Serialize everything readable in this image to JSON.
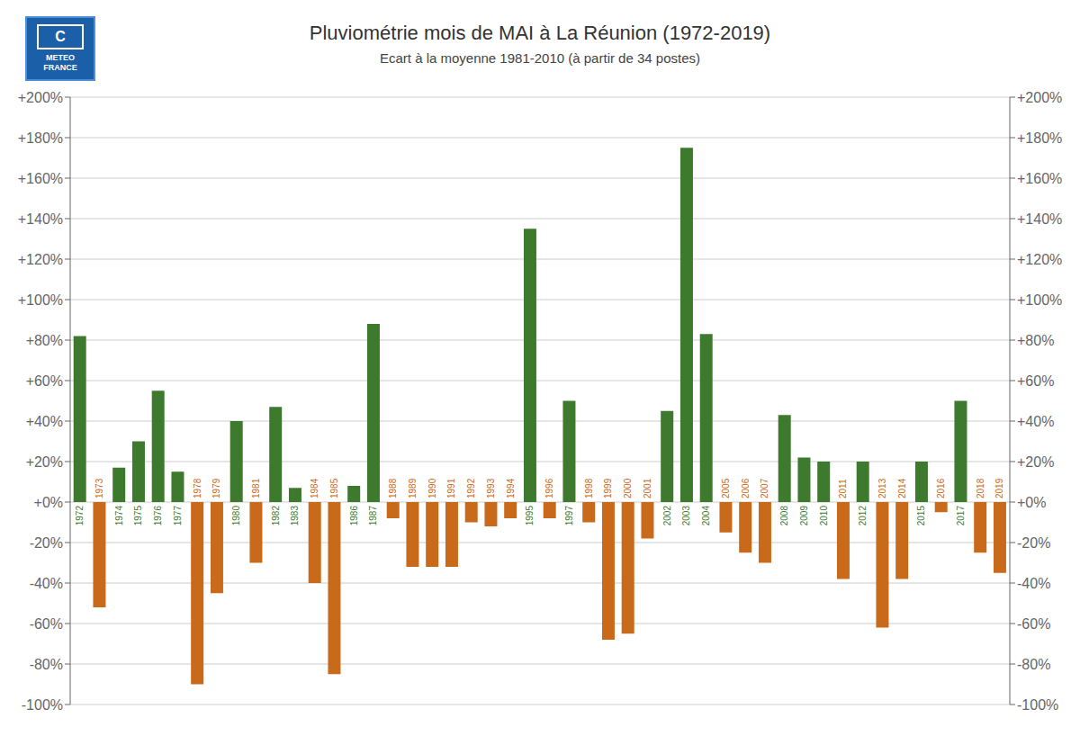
{
  "chart_data": {
    "type": "bar",
    "title": "Pluviométrie mois de MAI à La Réunion (1972-2019)",
    "subtitle": "Ecart à la moyenne 1981-2010 (à partir de 34 postes)",
    "annotations": [
      "C",
      "METEO",
      "FRANCE"
    ],
    "categories": [
      1972,
      1973,
      1974,
      1975,
      1976,
      1977,
      1978,
      1979,
      1980,
      1981,
      1982,
      1983,
      1984,
      1985,
      1986,
      1987,
      1988,
      1989,
      1990,
      1991,
      1992,
      1993,
      1994,
      1995,
      1996,
      1997,
      1998,
      1999,
      2000,
      2001,
      2002,
      2003,
      2004,
      2005,
      2006,
      2007,
      2008,
      2009,
      2010,
      2011,
      2012,
      2013,
      2014,
      2015,
      2016,
      2017,
      2018,
      2019
    ],
    "values": [
      82,
      -52,
      17,
      30,
      55,
      15,
      -90,
      -45,
      40,
      -30,
      47,
      7,
      -40,
      -85,
      8,
      88,
      -8,
      -32,
      -32,
      -32,
      -10,
      -12,
      -8,
      135,
      -8,
      50,
      -10,
      -68,
      -65,
      -18,
      45,
      175,
      83,
      -15,
      -25,
      -30,
      43,
      22,
      20,
      -38,
      20,
      -62,
      -38,
      20,
      -5,
      50,
      -25,
      -35
    ],
    "colors": [
      "#3d7a2e",
      "#c96a1a",
      "#3d7a2e",
      "#3d7a2e",
      "#3d7a2e",
      "#3d7a2e",
      "#c96a1a",
      "#c96a1a",
      "#3d7a2e",
      "#c96a1a",
      "#3d7a2e",
      "#3d7a2e",
      "#c96a1a",
      "#c96a1a",
      "#3d7a2e",
      "#3d7a2e",
      "#c96a1a",
      "#c96a1a",
      "#c96a1a",
      "#c96a1a",
      "#c96a1a",
      "#c96a1a",
      "#c96a1a",
      "#3d7a2e",
      "#c96a1a",
      "#3d7a2e",
      "#c96a1a",
      "#c96a1a",
      "#c96a1a",
      "#c96a1a",
      "#3d7a2e",
      "#3d7a2e",
      "#3d7a2e",
      "#c96a1a",
      "#c96a1a",
      "#c96a1a",
      "#3d7a2e",
      "#3d7a2e",
      "#3d7a2e",
      "#c96a1a",
      "#3d7a2e",
      "#c96a1a",
      "#c96a1a",
      "#3d7a2e",
      "#c96a1a",
      "#3d7a2e",
      "#c96a1a",
      "#c96a1a"
    ],
    "ylim": [
      -100,
      200
    ],
    "yticks": [
      {
        "value": -100,
        "label": "-100%"
      },
      {
        "value": -80,
        "label": "-80%"
      },
      {
        "value": -60,
        "label": "-60%"
      },
      {
        "value": -40,
        "label": "-40%"
      },
      {
        "value": -20,
        "label": "-20%"
      },
      {
        "value": 0,
        "label": "+0%"
      },
      {
        "value": 20,
        "label": "+20%"
      },
      {
        "value": 40,
        "label": "+40%"
      },
      {
        "value": 60,
        "label": "+60%"
      },
      {
        "value": 80,
        "label": "+80%"
      },
      {
        "value": 100,
        "label": "+100%"
      },
      {
        "value": 120,
        "label": "+120%"
      },
      {
        "value": 140,
        "label": "+140%"
      },
      {
        "value": 160,
        "label": "+160%"
      },
      {
        "value": 180,
        "label": "+180%"
      },
      {
        "value": 200,
        "label": "+200%"
      }
    ],
    "y2lim": [
      -100,
      200
    ],
    "y2ticks": [
      {
        "value": -100,
        "label": "-100%"
      },
      {
        "value": -80,
        "label": "-80%"
      },
      {
        "value": -60,
        "label": "-60%"
      },
      {
        "value": -40,
        "label": "-40%"
      },
      {
        "value": -20,
        "label": "-20%"
      },
      {
        "value": 0,
        "label": "+0%"
      },
      {
        "value": 20,
        "label": "+20%"
      },
      {
        "value": 40,
        "label": "+40%"
      },
      {
        "value": 60,
        "label": "+60%"
      },
      {
        "value": 80,
        "label": "+80%"
      },
      {
        "value": 100,
        "label": "+100%"
      },
      {
        "value": 120,
        "label": "+120%"
      },
      {
        "value": 140,
        "label": "+140%"
      },
      {
        "value": 160,
        "label": "+160%"
      },
      {
        "value": 180,
        "label": "+180%"
      },
      {
        "value": 200,
        "label": "+200%"
      }
    ],
    "grid": true
  }
}
